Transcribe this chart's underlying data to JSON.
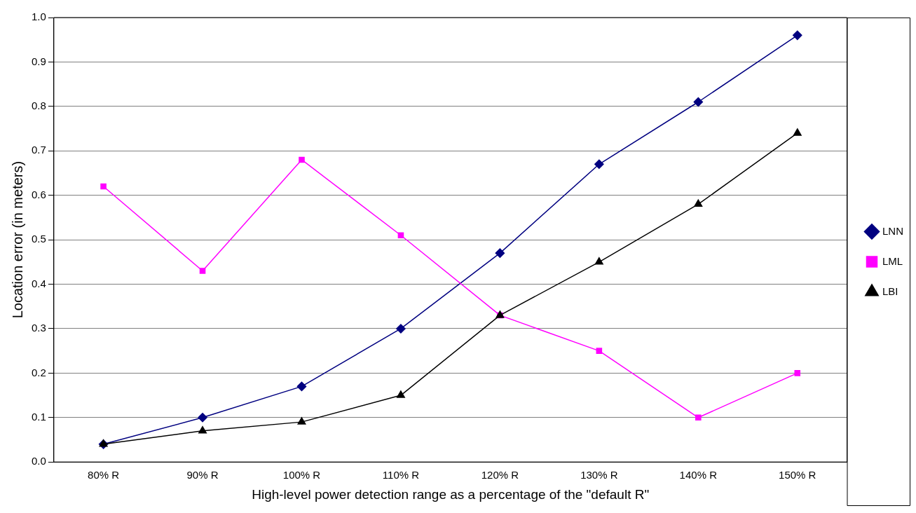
{
  "chart_data": {
    "type": "line",
    "xlabel": "High-level power detection range as a percentage of the \"default R\"",
    "ylabel": "Location error (in meters)",
    "categories": [
      "80% R",
      "90% R",
      "100% R",
      "110% R",
      "120% R",
      "130% R",
      "140% R",
      "150% R"
    ],
    "series": [
      {
        "name": "LNN",
        "color": "#000080",
        "marker": "diamond",
        "values": [
          0.04,
          0.1,
          0.17,
          0.3,
          0.47,
          0.67,
          0.81,
          0.96
        ]
      },
      {
        "name": "LML",
        "color": "#ff00ff",
        "marker": "square",
        "values": [
          0.62,
          0.43,
          0.68,
          0.51,
          0.33,
          0.25,
          0.1,
          0.2
        ]
      },
      {
        "name": "LBI",
        "color": "#000000",
        "marker": "triangle",
        "values": [
          0.04,
          0.07,
          0.09,
          0.15,
          0.33,
          0.45,
          0.58,
          0.74
        ]
      }
    ],
    "ylim": [
      0,
      1
    ],
    "yticks": [
      {
        "value": 0,
        "label": "0.0"
      },
      0.1,
      0.2,
      0.3,
      0.4,
      0.5,
      0.6,
      0.7,
      0.8,
      0.9,
      {
        "value": 1,
        "label": "1.0"
      }
    ],
    "grid": "y",
    "legend": "right",
    "line_style": "solid"
  }
}
